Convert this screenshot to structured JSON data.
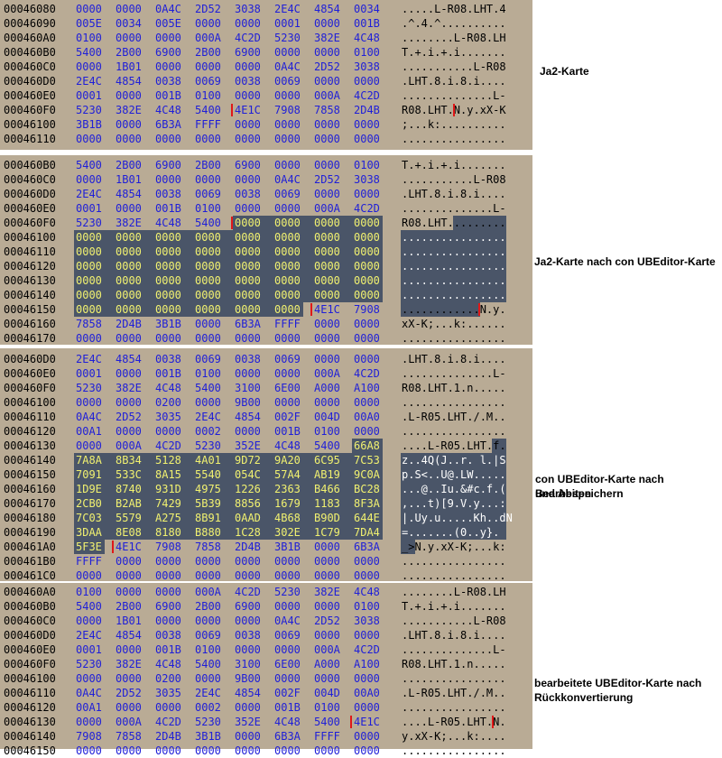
{
  "captions": {
    "p1": "Ja2-Karte",
    "p2": "Ja2-Karte nach con UBEditor-Karte",
    "p3_line1": "con UBEditor-Karte nach Bearbeiten",
    "p3_line2": "und Abspeichern",
    "p4_line1": "bearbeitete UBEditor-Karte nach",
    "p4_line2": "Rückkonvertierung"
  },
  "colors": {
    "panel_bg": "#b9ab95",
    "hex_word": "#1f1fd8",
    "hex_word_selected": "#f1f170",
    "selection": "#4a5568",
    "cursor": "#e01818"
  },
  "panels": [
    {
      "rows": [
        {
          "addr": "00046080",
          "words": [
            "0000",
            "0000",
            "0A4C",
            "2D52",
            "3038",
            "2E4C",
            "4854",
            "0034"
          ],
          "ascii": ".....L-R08.LHT.4"
        },
        {
          "addr": "00046090",
          "words": [
            "005E",
            "0034",
            "005E",
            "0000",
            "0000",
            "0001",
            "0000",
            "001B"
          ],
          "ascii": ".^.4.^.........."
        },
        {
          "addr": "000460A0",
          "words": [
            "0100",
            "0000",
            "0000",
            "000A",
            "4C2D",
            "5230",
            "382E",
            "4C48"
          ],
          "ascii": "........L-R08.LH"
        },
        {
          "addr": "000460B0",
          "words": [
            "5400",
            "2B00",
            "6900",
            "2B00",
            "6900",
            "0000",
            "0000",
            "0100"
          ],
          "ascii": "T.+.i.+.i......."
        },
        {
          "addr": "000460C0",
          "words": [
            "0000",
            "1B01",
            "0000",
            "0000",
            "0000",
            "0A4C",
            "2D52",
            "3038"
          ],
          "ascii": "...........L-R08"
        },
        {
          "addr": "000460D0",
          "words": [
            "2E4C",
            "4854",
            "0038",
            "0069",
            "0038",
            "0069",
            "0000",
            "0000"
          ],
          "ascii": ".LHT.8.i.8.i...."
        },
        {
          "addr": "000460E0",
          "words": [
            "0001",
            "0000",
            "001B",
            "0100",
            "0000",
            "0000",
            "000A",
            "4C2D"
          ],
          "ascii": "..............L-"
        },
        {
          "addr": "000460F0",
          "words": [
            "5230",
            "382E",
            "4C48",
            "5400",
            "4E1C",
            "7908",
            "7858",
            "2D4B"
          ],
          "ascii": "R08.LHT.N.y.xX-K"
        },
        {
          "addr": "00046100",
          "words": [
            "3B1B",
            "0000",
            "6B3A",
            "FFFF",
            "0000",
            "0000",
            "0000",
            "0000"
          ],
          "ascii": ";...k:.........."
        },
        {
          "addr": "00046110",
          "words": [
            "0000",
            "0000",
            "0000",
            "0000",
            "0000",
            "0000",
            "0000",
            "0000"
          ],
          "ascii": "................"
        }
      ]
    },
    {
      "rows": [
        {
          "addr": "000460B0",
          "words": [
            "5400",
            "2B00",
            "6900",
            "2B00",
            "6900",
            "0000",
            "0000",
            "0100"
          ],
          "ascii": "T.+.i.+.i......."
        },
        {
          "addr": "000460C0",
          "words": [
            "0000",
            "1B01",
            "0000",
            "0000",
            "0000",
            "0A4C",
            "2D52",
            "3038"
          ],
          "ascii": "...........L-R08"
        },
        {
          "addr": "000460D0",
          "words": [
            "2E4C",
            "4854",
            "0038",
            "0069",
            "0038",
            "0069",
            "0000",
            "0000"
          ],
          "ascii": ".LHT.8.i.8.i...."
        },
        {
          "addr": "000460E0",
          "words": [
            "0001",
            "0000",
            "001B",
            "0100",
            "0000",
            "0000",
            "000A",
            "4C2D"
          ],
          "ascii": "..............L-"
        },
        {
          "addr": "000460F0",
          "words": [
            "5230",
            "382E",
            "4C48",
            "5400",
            "0000",
            "0000",
            "0000",
            "0000"
          ],
          "ascii": "R08.LHT........."
        },
        {
          "addr": "00046100",
          "words": [
            "0000",
            "0000",
            "0000",
            "0000",
            "0000",
            "0000",
            "0000",
            "0000"
          ],
          "ascii": "................"
        },
        {
          "addr": "00046110",
          "words": [
            "0000",
            "0000",
            "0000",
            "0000",
            "0000",
            "0000",
            "0000",
            "0000"
          ],
          "ascii": "................"
        },
        {
          "addr": "00046120",
          "words": [
            "0000",
            "0000",
            "0000",
            "0000",
            "0000",
            "0000",
            "0000",
            "0000"
          ],
          "ascii": "................"
        },
        {
          "addr": "00046130",
          "words": [
            "0000",
            "0000",
            "0000",
            "0000",
            "0000",
            "0000",
            "0000",
            "0000"
          ],
          "ascii": "................"
        },
        {
          "addr": "00046140",
          "words": [
            "0000",
            "0000",
            "0000",
            "0000",
            "0000",
            "0000",
            "0000",
            "0000"
          ],
          "ascii": "................"
        },
        {
          "addr": "00046150",
          "words": [
            "0000",
            "0000",
            "0000",
            "0000",
            "0000",
            "0000",
            "4E1C",
            "7908"
          ],
          "ascii": "............N.y."
        },
        {
          "addr": "00046160",
          "words": [
            "7858",
            "2D4B",
            "3B1B",
            "0000",
            "6B3A",
            "FFFF",
            "0000",
            "0000"
          ],
          "ascii": "xX-K;...k:......"
        },
        {
          "addr": "00046170",
          "words": [
            "0000",
            "0000",
            "0000",
            "0000",
            "0000",
            "0000",
            "0000",
            "0000"
          ],
          "ascii": "................"
        }
      ]
    },
    {
      "rows": [
        {
          "addr": "000460D0",
          "words": [
            "2E4C",
            "4854",
            "0038",
            "0069",
            "0038",
            "0069",
            "0000",
            "0000"
          ],
          "ascii": ".LHT.8.i.8.i...."
        },
        {
          "addr": "000460E0",
          "words": [
            "0001",
            "0000",
            "001B",
            "0100",
            "0000",
            "0000",
            "000A",
            "4C2D"
          ],
          "ascii": "..............L-"
        },
        {
          "addr": "000460F0",
          "words": [
            "5230",
            "382E",
            "4C48",
            "5400",
            "3100",
            "6E00",
            "A000",
            "A100"
          ],
          "ascii": "R08.LHT.1.n....."
        },
        {
          "addr": "00046100",
          "words": [
            "0000",
            "0000",
            "0200",
            "0000",
            "9B00",
            "0000",
            "0000",
            "0000"
          ],
          "ascii": "................"
        },
        {
          "addr": "00046110",
          "words": [
            "0A4C",
            "2D52",
            "3035",
            "2E4C",
            "4854",
            "002F",
            "004D",
            "00A0"
          ],
          "ascii": ".L-R05.LHT./.M.."
        },
        {
          "addr": "00046120",
          "words": [
            "00A1",
            "0000",
            "0000",
            "0002",
            "0000",
            "001B",
            "0100",
            "0000"
          ],
          "ascii": "................"
        },
        {
          "addr": "00046130",
          "words": [
            "0000",
            "000A",
            "4C2D",
            "5230",
            "352E",
            "4C48",
            "5400",
            "66A8"
          ],
          "ascii": "....L-R05.LHT.f."
        },
        {
          "addr": "00046140",
          "words": [
            "7A8A",
            "8B34",
            "5128",
            "4A01",
            "9D72",
            "9A20",
            "6C95",
            "7C53"
          ],
          "ascii": "z..4Q(J..r. l.|S"
        },
        {
          "addr": "00046150",
          "words": [
            "7091",
            "533C",
            "8A15",
            "5540",
            "054C",
            "57A4",
            "AB19",
            "9C0A"
          ],
          "ascii": "p.S<..U@.LW....."
        },
        {
          "addr": "00046160",
          "words": [
            "1D9E",
            "8740",
            "931D",
            "4975",
            "1226",
            "2363",
            "B466",
            "BC28"
          ],
          "ascii": "...@..Iu.&#c.f.("
        },
        {
          "addr": "00046170",
          "words": [
            "2CB0",
            "B2AB",
            "7429",
            "5B39",
            "8856",
            "1679",
            "1183",
            "8F3A"
          ],
          "ascii": ",...t)[9.V.y...:"
        },
        {
          "addr": "00046180",
          "words": [
            "7C03",
            "5579",
            "A275",
            "8B91",
            "0AAD",
            "4B68",
            "B90D",
            "644E"
          ],
          "ascii": "|.Uy.u.....Kh..dN"
        },
        {
          "addr": "00046190",
          "words": [
            "3DAA",
            "8E08",
            "8180",
            "B880",
            "1C28",
            "302E",
            "1C79",
            "7DA4"
          ],
          "ascii": "=.......(0..y}."
        },
        {
          "addr": "000461A0",
          "words": [
            "5F3E",
            "4E1C",
            "7908",
            "7858",
            "2D4B",
            "3B1B",
            "0000",
            "6B3A"
          ],
          "ascii": "_>N.y.xX-K;...k:"
        },
        {
          "addr": "000461B0",
          "words": [
            "FFFF",
            "0000",
            "0000",
            "0000",
            "0000",
            "0000",
            "0000",
            "0000"
          ],
          "ascii": "................"
        },
        {
          "addr": "000461C0",
          "words": [
            "0000",
            "0000",
            "0000",
            "0000",
            "0000",
            "0000",
            "0000",
            "0000"
          ],
          "ascii": "................"
        }
      ]
    },
    {
      "rows": [
        {
          "addr": "000460A0",
          "words": [
            "0100",
            "0000",
            "0000",
            "000A",
            "4C2D",
            "5230",
            "382E",
            "4C48"
          ],
          "ascii": "........L-R08.LH"
        },
        {
          "addr": "000460B0",
          "words": [
            "5400",
            "2B00",
            "6900",
            "2B00",
            "6900",
            "0000",
            "0000",
            "0100"
          ],
          "ascii": "T.+.i.+.i......."
        },
        {
          "addr": "000460C0",
          "words": [
            "0000",
            "1B01",
            "0000",
            "0000",
            "0000",
            "0A4C",
            "2D52",
            "3038"
          ],
          "ascii": "...........L-R08"
        },
        {
          "addr": "000460D0",
          "words": [
            "2E4C",
            "4854",
            "0038",
            "0069",
            "0038",
            "0069",
            "0000",
            "0000"
          ],
          "ascii": ".LHT.8.i.8.i...."
        },
        {
          "addr": "000460E0",
          "words": [
            "0001",
            "0000",
            "001B",
            "0100",
            "0000",
            "0000",
            "000A",
            "4C2D"
          ],
          "ascii": "..............L-"
        },
        {
          "addr": "000460F0",
          "words": [
            "5230",
            "382E",
            "4C48",
            "5400",
            "3100",
            "6E00",
            "A000",
            "A100"
          ],
          "ascii": "R08.LHT.1.n....."
        },
        {
          "addr": "00046100",
          "words": [
            "0000",
            "0000",
            "0200",
            "0000",
            "9B00",
            "0000",
            "0000",
            "0000"
          ],
          "ascii": "................"
        },
        {
          "addr": "00046110",
          "words": [
            "0A4C",
            "2D52",
            "3035",
            "2E4C",
            "4854",
            "002F",
            "004D",
            "00A0"
          ],
          "ascii": ".L-R05.LHT./.M.."
        },
        {
          "addr": "00046120",
          "words": [
            "00A1",
            "0000",
            "0000",
            "0002",
            "0000",
            "001B",
            "0100",
            "0000"
          ],
          "ascii": "................"
        },
        {
          "addr": "00046130",
          "words": [
            "0000",
            "000A",
            "4C2D",
            "5230",
            "352E",
            "4C48",
            "5400",
            "4E1C"
          ],
          "ascii": "....L-R05.LHT.N."
        },
        {
          "addr": "00046140",
          "words": [
            "7908",
            "7858",
            "2D4B",
            "3B1B",
            "0000",
            "6B3A",
            "FFFF",
            "0000"
          ],
          "ascii": "y.xX-K;...k:...."
        },
        {
          "addr": "00046150",
          "words": [
            "0000",
            "0000",
            "0000",
            "0000",
            "0000",
            "0000",
            "0000",
            "0000"
          ],
          "ascii": "................"
        }
      ]
    }
  ]
}
